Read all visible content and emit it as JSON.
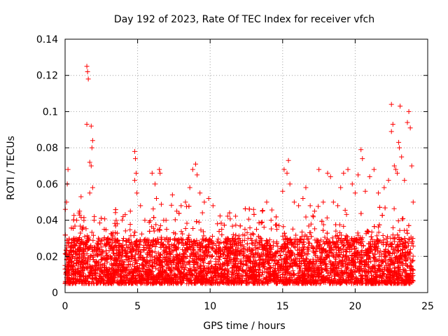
{
  "chart_data": {
    "type": "scatter",
    "title": "Day 192 of 2023, Rate Of TEC Index for receiver vfch",
    "xlabel": "GPS time / hours",
    "ylabel": "ROTI / TECUs",
    "xlim": [
      0,
      25
    ],
    "ylim": [
      0,
      0.14
    ],
    "xticks": [
      0,
      5,
      10,
      15,
      20,
      25
    ],
    "xtick_labels": [
      "0",
      "5",
      "10",
      "15",
      "20",
      "25"
    ],
    "yticks": [
      0,
      0.02,
      0.04,
      0.06,
      0.08,
      0.1,
      0.12,
      0.14
    ],
    "ytick_labels": [
      "0",
      "0.02",
      "0.04",
      "0.06",
      "0.08",
      "0.1",
      "0.12",
      "0.14"
    ],
    "grid": true,
    "marker": "+",
    "color": "#ff0000",
    "series": [
      {
        "name": "ROTI",
        "points": [
          [
            0.0,
            0.015
          ],
          [
            0.1,
            0.05
          ],
          [
            0.15,
            0.06
          ],
          [
            0.2,
            0.068
          ],
          [
            0.25,
            0.013
          ],
          [
            0.4,
            0.025
          ],
          [
            0.6,
            0.03
          ],
          [
            0.8,
            0.04
          ],
          [
            1.0,
            0.045
          ],
          [
            1.1,
            0.053
          ],
          [
            1.2,
            0.035
          ],
          [
            1.5,
            0.125
          ],
          [
            1.55,
            0.122
          ],
          [
            1.6,
            0.118
          ],
          [
            1.5,
            0.093
          ],
          [
            1.8,
            0.092
          ],
          [
            1.9,
            0.084
          ],
          [
            1.85,
            0.08
          ],
          [
            1.7,
            0.072
          ],
          [
            1.8,
            0.07
          ],
          [
            1.9,
            0.058
          ],
          [
            1.7,
            0.055
          ],
          [
            2.0,
            0.04
          ],
          [
            2.3,
            0.03
          ],
          [
            2.7,
            0.035
          ],
          [
            3.0,
            0.028
          ],
          [
            3.3,
            0.033
          ],
          [
            3.6,
            0.038
          ],
          [
            4.0,
            0.042
          ],
          [
            4.5,
            0.045
          ],
          [
            4.8,
            0.078
          ],
          [
            4.85,
            0.074
          ],
          [
            4.9,
            0.066
          ],
          [
            4.8,
            0.062
          ],
          [
            4.95,
            0.055
          ],
          [
            5.2,
            0.048
          ],
          [
            5.5,
            0.04
          ],
          [
            6.0,
            0.066
          ],
          [
            6.2,
            0.06
          ],
          [
            6.5,
            0.068
          ],
          [
            6.55,
            0.066
          ],
          [
            6.3,
            0.052
          ],
          [
            6.8,
            0.04
          ],
          [
            7.0,
            0.035
          ],
          [
            7.4,
            0.054
          ],
          [
            7.7,
            0.045
          ],
          [
            8.0,
            0.048
          ],
          [
            8.3,
            0.05
          ],
          [
            8.6,
            0.058
          ],
          [
            8.8,
            0.068
          ],
          [
            9.0,
            0.071
          ],
          [
            9.1,
            0.065
          ],
          [
            9.3,
            0.055
          ],
          [
            9.6,
            0.05
          ],
          [
            9.9,
            0.052
          ],
          [
            10.2,
            0.048
          ],
          [
            10.5,
            0.038
          ],
          [
            10.8,
            0.035
          ],
          [
            11.2,
            0.03
          ],
          [
            11.6,
            0.032
          ],
          [
            12.0,
            0.03
          ],
          [
            12.4,
            0.035
          ],
          [
            12.8,
            0.03
          ],
          [
            13.2,
            0.035
          ],
          [
            13.6,
            0.045
          ],
          [
            13.9,
            0.05
          ],
          [
            14.2,
            0.04
          ],
          [
            14.6,
            0.035
          ],
          [
            15.0,
            0.056
          ],
          [
            15.1,
            0.068
          ],
          [
            15.3,
            0.066
          ],
          [
            15.4,
            0.073
          ],
          [
            15.5,
            0.06
          ],
          [
            15.8,
            0.05
          ],
          [
            16.1,
            0.048
          ],
          [
            16.4,
            0.052
          ],
          [
            16.6,
            0.058
          ],
          [
            16.9,
            0.048
          ],
          [
            17.2,
            0.045
          ],
          [
            17.5,
            0.068
          ],
          [
            17.8,
            0.05
          ],
          [
            18.1,
            0.066
          ],
          [
            18.3,
            0.064
          ],
          [
            18.5,
            0.05
          ],
          [
            18.8,
            0.048
          ],
          [
            19.0,
            0.058
          ],
          [
            19.2,
            0.066
          ],
          [
            19.5,
            0.068
          ],
          [
            19.8,
            0.06
          ],
          [
            20.0,
            0.055
          ],
          [
            20.2,
            0.065
          ],
          [
            20.4,
            0.079
          ],
          [
            20.5,
            0.074
          ],
          [
            20.7,
            0.056
          ],
          [
            21.0,
            0.064
          ],
          [
            21.3,
            0.068
          ],
          [
            21.6,
            0.055
          ],
          [
            22.0,
            0.058
          ],
          [
            22.3,
            0.062
          ],
          [
            22.5,
            0.104
          ],
          [
            22.5,
            0.089
          ],
          [
            22.6,
            0.093
          ],
          [
            22.7,
            0.07
          ],
          [
            22.8,
            0.068
          ],
          [
            22.9,
            0.066
          ],
          [
            23.0,
            0.083
          ],
          [
            23.05,
            0.08
          ],
          [
            23.1,
            0.103
          ],
          [
            23.2,
            0.075
          ],
          [
            23.4,
            0.062
          ],
          [
            23.6,
            0.094
          ],
          [
            23.7,
            0.1
          ],
          [
            23.8,
            0.091
          ],
          [
            23.9,
            0.07
          ],
          [
            24.0,
            0.05
          ]
        ],
        "baseline_band": {
          "x_start": 0.0,
          "x_end": 24.0,
          "y_low": 0.005,
          "y_high": 0.03,
          "density_per_hour": 220
        }
      }
    ]
  }
}
